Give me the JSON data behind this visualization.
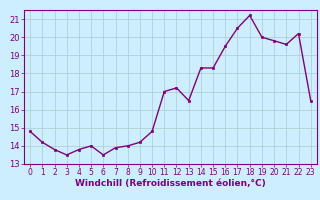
{
  "x": [
    0,
    1,
    2,
    3,
    4,
    5,
    6,
    7,
    8,
    9,
    10,
    11,
    12,
    13,
    14,
    15,
    16,
    17,
    18,
    19,
    20,
    21,
    22,
    23
  ],
  "y": [
    14.8,
    14.2,
    13.8,
    13.5,
    13.8,
    14.0,
    13.5,
    13.9,
    14.0,
    14.2,
    14.8,
    17.0,
    17.2,
    16.5,
    18.3,
    18.3,
    19.5,
    20.5,
    21.2,
    20.0,
    19.8,
    19.6,
    20.2,
    16.5
  ],
  "line_color": "#800080",
  "marker": "s",
  "marker_size": 2.0,
  "bg_color": "#cceeff",
  "grid_color": "#aacccc",
  "xlabel": "Windchill (Refroidissement éolien,°C)",
  "xlabel_color": "#800080",
  "tick_color": "#800080",
  "spine_color": "#800080",
  "ylim": [
    13,
    21.5
  ],
  "xlim": [
    -0.5,
    23.5
  ],
  "yticks": [
    13,
    14,
    15,
    16,
    17,
    18,
    19,
    20,
    21
  ],
  "xticks": [
    0,
    1,
    2,
    3,
    4,
    5,
    6,
    7,
    8,
    9,
    10,
    11,
    12,
    13,
    14,
    15,
    16,
    17,
    18,
    19,
    20,
    21,
    22,
    23
  ],
  "tick_labelsize": 5.5,
  "xlabel_fontsize": 6.5,
  "linewidth": 1.0
}
